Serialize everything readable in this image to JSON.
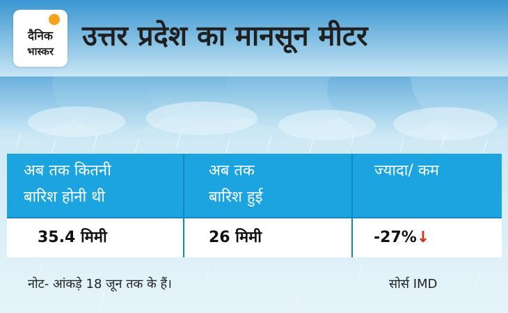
{
  "brand": {
    "logo_line1": "दैनिक",
    "logo_line2": "भास्कर"
  },
  "title": "उत्तर प्रदेश का मानसून मीटर",
  "table": {
    "headers": [
      {
        "line1": "अब तक कितनी",
        "line2": "बारिश होनी थी"
      },
      {
        "line1": "अब तक",
        "line2": "बारिश हुई"
      },
      {
        "line1": "ज्यादा/ कम",
        "line2": ""
      }
    ],
    "values": [
      "35.4 मिमी",
      "26 मिमी",
      "-27%"
    ],
    "trend_icon": "down-arrow-icon",
    "trend_color": "#e2231a"
  },
  "footer": {
    "note": "नोट- आंकड़े 18 जून तक के हैं।",
    "source": "सोर्स IMD"
  },
  "colors": {
    "header_blue": "#1ba4e0",
    "sky": "#d9eef6",
    "cloud": "#3a9fd6"
  }
}
